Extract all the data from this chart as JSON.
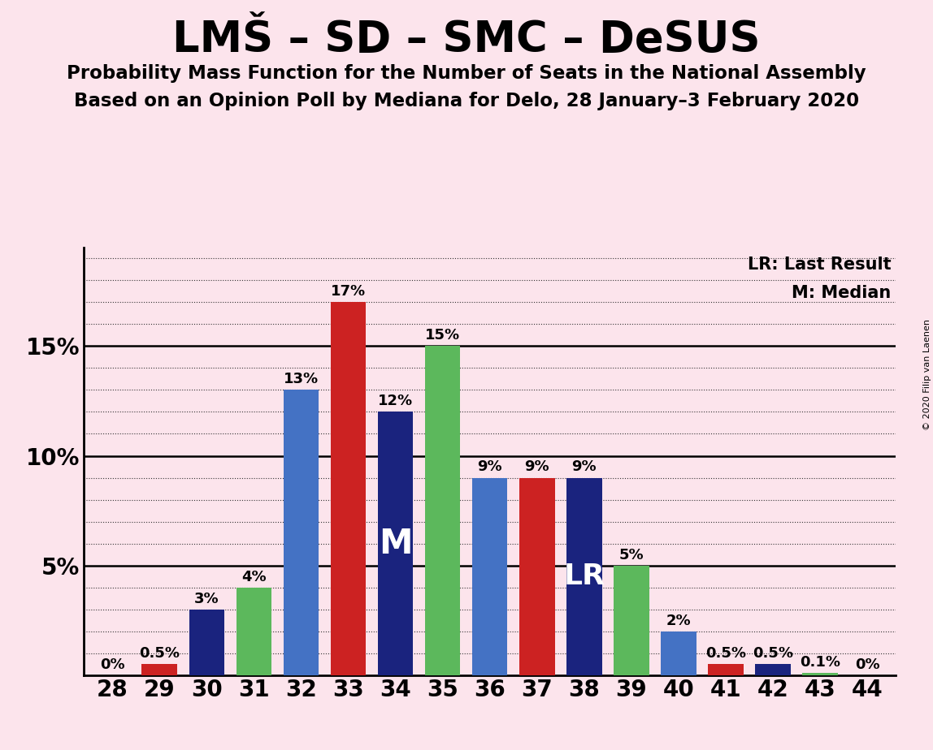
{
  "title": "LMŠ – SD – SMC – DeSUS",
  "subtitle1": "Probability Mass Function for the Number of Seats in the National Assembly",
  "subtitle2": "Based on an Opinion Poll by Mediana for Delo, 28 January–3 February 2020",
  "copyright": "© 2020 Filip van Laenen",
  "seats": [
    28,
    29,
    30,
    31,
    32,
    33,
    34,
    35,
    36,
    37,
    38,
    39,
    40,
    41,
    42,
    43,
    44
  ],
  "values": [
    0.0,
    0.5,
    3.0,
    4.0,
    13.0,
    17.0,
    12.0,
    15.0,
    9.0,
    9.0,
    9.0,
    5.0,
    2.0,
    0.5,
    0.5,
    0.1,
    0.0
  ],
  "bar_colors": [
    "#4472c4",
    "#cc2222",
    "#1a237e",
    "#5cb85c",
    "#4472c4",
    "#cc2222",
    "#1a237e",
    "#5cb85c",
    "#4472c4",
    "#cc2222",
    "#1a237e",
    "#5cb85c",
    "#4472c4",
    "#cc2222",
    "#1a237e",
    "#5cb85c",
    "#4472c4"
  ],
  "background_color": "#fce4ec",
  "median_seat": 34,
  "lr_seat": 38,
  "ylim_max": 19.5,
  "yticks": [
    5,
    10,
    15
  ],
  "ytick_labels": [
    "5%",
    "10%",
    "15%"
  ],
  "lr_label": "LR: Last Result",
  "median_label": "M: Median",
  "title_fontsize": 38,
  "subtitle_fontsize": 16.5,
  "bar_label_fontsize": 13,
  "tick_fontsize": 20,
  "legend_fontsize": 15,
  "copyright_fontsize": 8
}
